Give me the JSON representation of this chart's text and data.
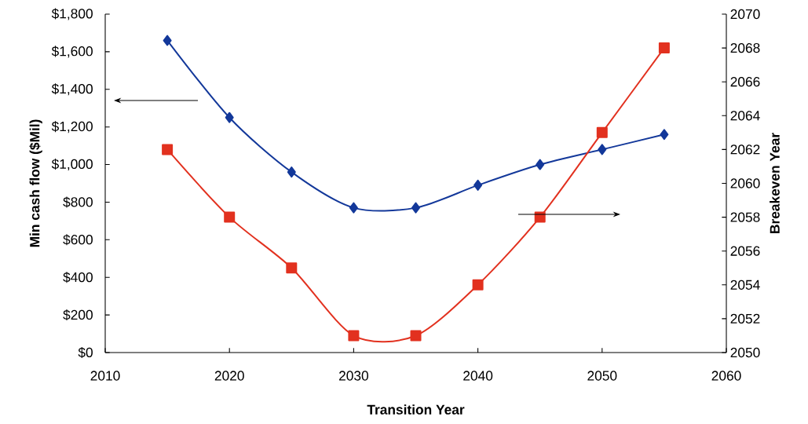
{
  "chart_data": {
    "type": "line",
    "xlabel": "Transition Year",
    "ylabel": "Min cash flow ($Mil)",
    "y2label": "Breakeven Year",
    "x": [
      2015,
      2020,
      2025,
      2030,
      2035,
      2040,
      2045,
      2050,
      2055
    ],
    "series": [
      {
        "color": "#13389a",
        "marker": "diamond",
        "values": [
          1660,
          1250,
          960,
          770,
          770,
          890,
          1000,
          1080,
          1160
        ]
      },
      {
        "color": "#e2311f",
        "marker": "square",
        "axis": "y2",
        "values": [
          2062,
          2058,
          2055,
          2051,
          2051,
          2054,
          2058,
          2063,
          2068
        ]
      }
    ],
    "xlim": [
      2010,
      2060
    ],
    "xticks": [
      2010,
      2020,
      2030,
      2040,
      2050,
      2060
    ],
    "ylim": [
      0,
      1800
    ],
    "yticks": [
      {
        "value": 0,
        "label": "$0"
      },
      {
        "value": 200,
        "label": "$200"
      },
      {
        "value": 400,
        "label": "$400"
      },
      {
        "value": 600,
        "label": "$600"
      },
      {
        "value": 800,
        "label": "$800"
      },
      {
        "value": 1000,
        "label": "$1,000"
      },
      {
        "value": 1200,
        "label": "$1,200"
      },
      {
        "value": 1400,
        "label": "$1,400"
      },
      {
        "value": 1600,
        "label": "$1,600"
      },
      {
        "value": 1800,
        "label": "$1,800"
      }
    ],
    "y2lim": [
      2050,
      2070
    ],
    "y2ticks": [
      2050,
      2052,
      2054,
      2056,
      2058,
      2060,
      2062,
      2064,
      2066,
      2068,
      2070
    ],
    "grid": false
  }
}
